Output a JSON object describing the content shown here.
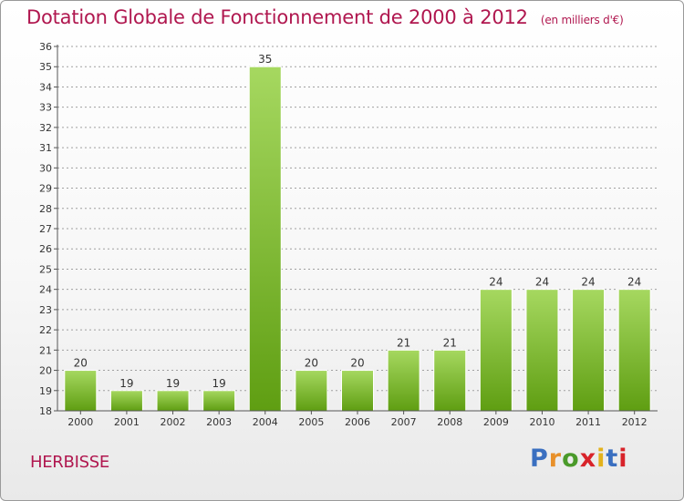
{
  "header": {
    "title": "Dotation Globale de Fonctionnement de 2000 à 2012",
    "subtitle": "(en milliers d'€)"
  },
  "footer": {
    "commune": "HERBISSE",
    "logo_text": "Proxiti"
  },
  "chart_data": {
    "type": "bar",
    "title": "Dotation Globale de Fonctionnement de 2000 à 2012",
    "subtitle": "(en milliers d'€)",
    "categories": [
      "2000",
      "2001",
      "2002",
      "2003",
      "2004",
      "2005",
      "2006",
      "2007",
      "2008",
      "2009",
      "2010",
      "2011",
      "2012"
    ],
    "values": [
      20,
      19,
      19,
      19,
      35,
      20,
      20,
      21,
      21,
      24,
      24,
      24,
      24
    ],
    "ylim": [
      18,
      36
    ],
    "ytick_step": 1,
    "grid": true,
    "data_labels": true,
    "colors": {
      "bar_top": "#a6d860",
      "bar_bottom": "#5f9e12",
      "axis": "#555555",
      "grid": "#a0a0a0",
      "title": "#b0174f"
    }
  }
}
